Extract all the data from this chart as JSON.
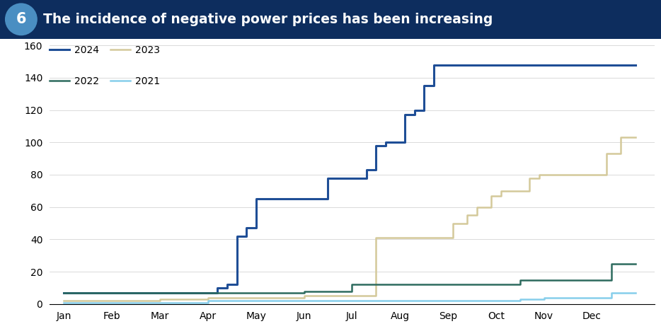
{
  "title": "The incidence of negative power prices has been increasing",
  "title_number": "6",
  "header_bg_color": "#0d2d5e",
  "header_text_color": "#ffffff",
  "circle_color": "#4a8ec2",
  "background_color": "#ffffff",
  "ylim": [
    0,
    160
  ],
  "yticks": [
    0,
    20,
    40,
    60,
    80,
    100,
    120,
    140,
    160
  ],
  "months": [
    "Jan",
    "Feb",
    "Mar",
    "Apr",
    "May",
    "Jun",
    "Jul",
    "Aug",
    "Sep",
    "Oct",
    "Nov",
    "Dec"
  ],
  "series": [
    {
      "label": "2024",
      "color": "#1f4e96",
      "linewidth": 2.2,
      "data_x": [
        0,
        0.5,
        1,
        1.5,
        2,
        2.5,
        3,
        3.2,
        3.4,
        3.6,
        3.8,
        4.0,
        4.2,
        4.5,
        5.0,
        5.5,
        6.0,
        6.3,
        6.5,
        6.7,
        6.9,
        7.1,
        7.3,
        7.5,
        7.7,
        7.9,
        8.1,
        8.3,
        11.9
      ],
      "data_y": [
        7,
        7,
        7,
        7,
        7,
        7,
        7,
        10,
        12,
        42,
        47,
        65,
        65,
        65,
        65,
        78,
        78,
        83,
        98,
        100,
        100,
        117,
        120,
        135,
        148,
        148,
        148,
        148,
        148
      ]
    },
    {
      "label": "2023",
      "color": "#d4c99a",
      "linewidth": 1.8,
      "data_x": [
        0,
        1,
        2,
        3,
        4,
        5,
        6,
        6.5,
        7.0,
        7.3,
        7.6,
        7.9,
        8.1,
        8.4,
        8.6,
        8.9,
        9.1,
        9.4,
        9.7,
        9.9,
        10.1,
        10.4,
        10.8,
        11.0,
        11.3,
        11.6,
        11.9
      ],
      "data_y": [
        2,
        2,
        3,
        4,
        4,
        5,
        5,
        41,
        41,
        41,
        41,
        41,
        50,
        55,
        60,
        67,
        70,
        70,
        78,
        80,
        80,
        80,
        80,
        80,
        93,
        103,
        103
      ]
    },
    {
      "label": "2022",
      "color": "#2d6b5e",
      "linewidth": 1.8,
      "data_x": [
        0,
        1,
        2,
        3,
        4,
        5,
        5.5,
        6,
        7,
        8,
        9,
        9.5,
        10,
        10.5,
        11,
        11.4,
        11.9
      ],
      "data_y": [
        7,
        7,
        7,
        7,
        7,
        8,
        8,
        12,
        12,
        12,
        12,
        15,
        15,
        15,
        15,
        25,
        25
      ]
    },
    {
      "label": "2021",
      "color": "#87ceeb",
      "linewidth": 1.8,
      "data_x": [
        0,
        1,
        2,
        3,
        4,
        5,
        6,
        7,
        8,
        9,
        9.5,
        10,
        10.5,
        11,
        11.4,
        11.9
      ],
      "data_y": [
        1,
        1,
        1,
        2,
        2,
        2,
        2,
        2,
        2,
        2,
        3,
        4,
        4,
        4,
        7,
        7
      ]
    }
  ]
}
